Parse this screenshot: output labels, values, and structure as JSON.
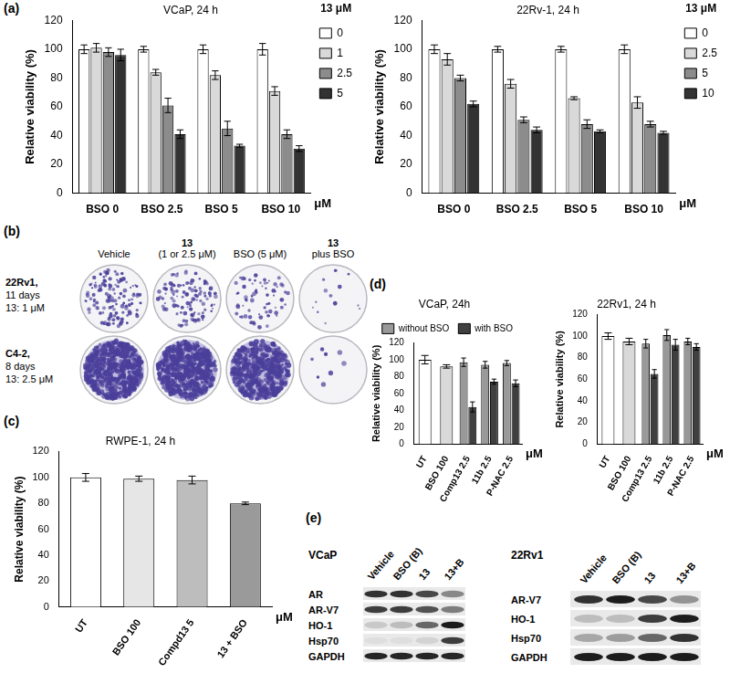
{
  "panel_labels": [
    "(a)",
    "(b)",
    "(c)",
    "(d)",
    "(e)"
  ],
  "chart_data": [
    {
      "type": "bar",
      "title": "VCaP, 24 h",
      "ylabel": "Relative viability (%)",
      "xlabel": "μM",
      "legend_title": "13 μM",
      "legend": "right",
      "categories": [
        "BSO 0",
        "BSO 2.5",
        "BSO 5",
        "BSO 10"
      ],
      "series": [
        {
          "name": "0",
          "color": "#ffffff",
          "values": [
            100,
            100,
            100,
            100
          ],
          "error": [
            3,
            2,
            3,
            4
          ]
        },
        {
          "name": "1",
          "color": "#d9d9d9",
          "values": [
            101,
            84,
            82,
            71
          ],
          "error": [
            3,
            2,
            3,
            3
          ]
        },
        {
          "name": "2.5",
          "color": "#8c8c8c",
          "values": [
            98,
            61,
            45,
            41
          ],
          "error": [
            3,
            5,
            5,
            3
          ]
        },
        {
          "name": "5",
          "color": "#333333",
          "values": [
            96,
            41,
            33,
            31
          ],
          "error": [
            4,
            3,
            1,
            2
          ]
        }
      ],
      "ylim": [
        0,
        120
      ],
      "yticks": [
        0,
        20,
        40,
        60,
        80,
        100,
        120
      ],
      "grid": false
    },
    {
      "type": "bar",
      "title": "22Rv-1, 24 h",
      "ylabel": "Relative viability (%)",
      "xlabel": "μM",
      "legend_title": "13 μM",
      "legend": "right",
      "categories": [
        "BSO 0",
        "BSO 2.5",
        "BSO 5",
        "BSO 10"
      ],
      "series": [
        {
          "name": "0",
          "color": "#ffffff",
          "values": [
            100,
            100,
            100,
            100
          ],
          "error": [
            3,
            2,
            2,
            3
          ]
        },
        {
          "name": "2.5",
          "color": "#d9d9d9",
          "values": [
            93,
            76,
            66,
            63
          ],
          "error": [
            4,
            3,
            1,
            4
          ]
        },
        {
          "name": "5",
          "color": "#8c8c8c",
          "values": [
            80,
            51,
            48,
            48
          ],
          "error": [
            2,
            2,
            3,
            2
          ]
        },
        {
          "name": "10",
          "color": "#333333",
          "values": [
            62,
            44,
            43,
            42
          ],
          "error": [
            2,
            2,
            1,
            1
          ]
        }
      ],
      "ylim": [
        0,
        120
      ],
      "yticks": [
        0,
        20,
        40,
        60,
        80,
        100,
        120
      ],
      "grid": false
    },
    {
      "type": "bar",
      "title": "RWPE-1, 24 h",
      "ylabel": "Relative viability (%)",
      "xlabel": "μM",
      "categories": [
        "UT",
        "BSO 100",
        "Compd13 5",
        "13 + BSO"
      ],
      "values": [
        100,
        99,
        98,
        80
      ],
      "error": [
        3,
        2,
        3,
        1
      ],
      "colors": [
        "#ffffff",
        "#e6e6e6",
        "#bdbdbd",
        "#9a9a9a"
      ],
      "ylim": [
        0,
        120
      ],
      "yticks": [
        0,
        20,
        40,
        60,
        80,
        100,
        120
      ],
      "grid": false
    },
    {
      "type": "bar",
      "title": "VCaP, 24h",
      "ylabel": "Relative viability (%)",
      "xlabel": "μM",
      "legend": "top-right",
      "categories": [
        "UT",
        "BSO 100",
        "Comp13 2.5",
        "11b 2.5",
        "P-NAC 2.5"
      ],
      "series": [
        {
          "colors": [
            "#ffffff",
            "#d9d9d9",
            null,
            null,
            null
          ],
          "values": [
            100,
            92,
            null,
            null,
            null
          ],
          "error": [
            5,
            2,
            null,
            null,
            null
          ]
        },
        {
          "name": "without BSO",
          "color": "#999999",
          "values": [
            null,
            null,
            97,
            94,
            96
          ],
          "error": [
            null,
            null,
            5,
            4,
            3
          ]
        },
        {
          "name": "with BSO",
          "color": "#404040",
          "values": [
            null,
            null,
            44,
            74,
            72
          ],
          "error": [
            null,
            null,
            6,
            3,
            4
          ]
        }
      ],
      "ylim": [
        0,
        120
      ],
      "yticks": [
        0,
        20,
        40,
        60,
        80,
        100,
        120
      ],
      "grid": false
    },
    {
      "type": "bar",
      "title": "22Rv1, 24 h",
      "ylabel": "Relative viability (%)",
      "xlabel": "μM",
      "categories": [
        "UT",
        "BSO 100",
        "Comp13 2.5",
        "11b 2.5",
        "P-NAC 2.5"
      ],
      "series": [
        {
          "colors": [
            "#ffffff",
            "#d9d9d9",
            null,
            null,
            null
          ],
          "values": [
            100,
            95,
            null,
            null,
            null
          ],
          "error": [
            3,
            3,
            null,
            null,
            null
          ]
        },
        {
          "color": "#999999",
          "values": [
            null,
            null,
            93,
            101,
            95
          ],
          "error": [
            null,
            null,
            4,
            5,
            3
          ]
        },
        {
          "color": "#404040",
          "values": [
            null,
            null,
            65,
            92,
            90
          ],
          "error": [
            null,
            null,
            4,
            5,
            3
          ]
        }
      ],
      "ylim": [
        0,
        120
      ],
      "yticks": [
        0,
        20,
        40,
        60,
        80,
        100,
        120
      ],
      "grid": false
    }
  ],
  "colony_assay": {
    "columns": [
      [
        "Vehicle"
      ],
      [
        "13",
        "(1 or 2.5 μM)"
      ],
      [
        "BSO (5 μM)"
      ],
      [
        "13",
        "plus BSO"
      ]
    ],
    "rows": [
      [
        "22Rv1,",
        "11 days",
        "13: 1 μM"
      ],
      [
        "C4-2,",
        "8 days",
        "13: 2.5 μM"
      ]
    ]
  },
  "western_blots": [
    {
      "cell_line": "VCaP",
      "lanes": [
        "Vehicle",
        "BSO (B)",
        "13",
        "13+B"
      ],
      "proteins": [
        "AR",
        "AR-V7",
        "HO-1",
        "Hsp70",
        "GAPDH"
      ]
    },
    {
      "cell_line": "22Rv1",
      "lanes": [
        "Vehicle",
        "BSO (B)",
        "13",
        "13+B"
      ],
      "proteins": [
        "AR-V7",
        "HO-1",
        "Hsp70",
        "GAPDH"
      ]
    }
  ]
}
